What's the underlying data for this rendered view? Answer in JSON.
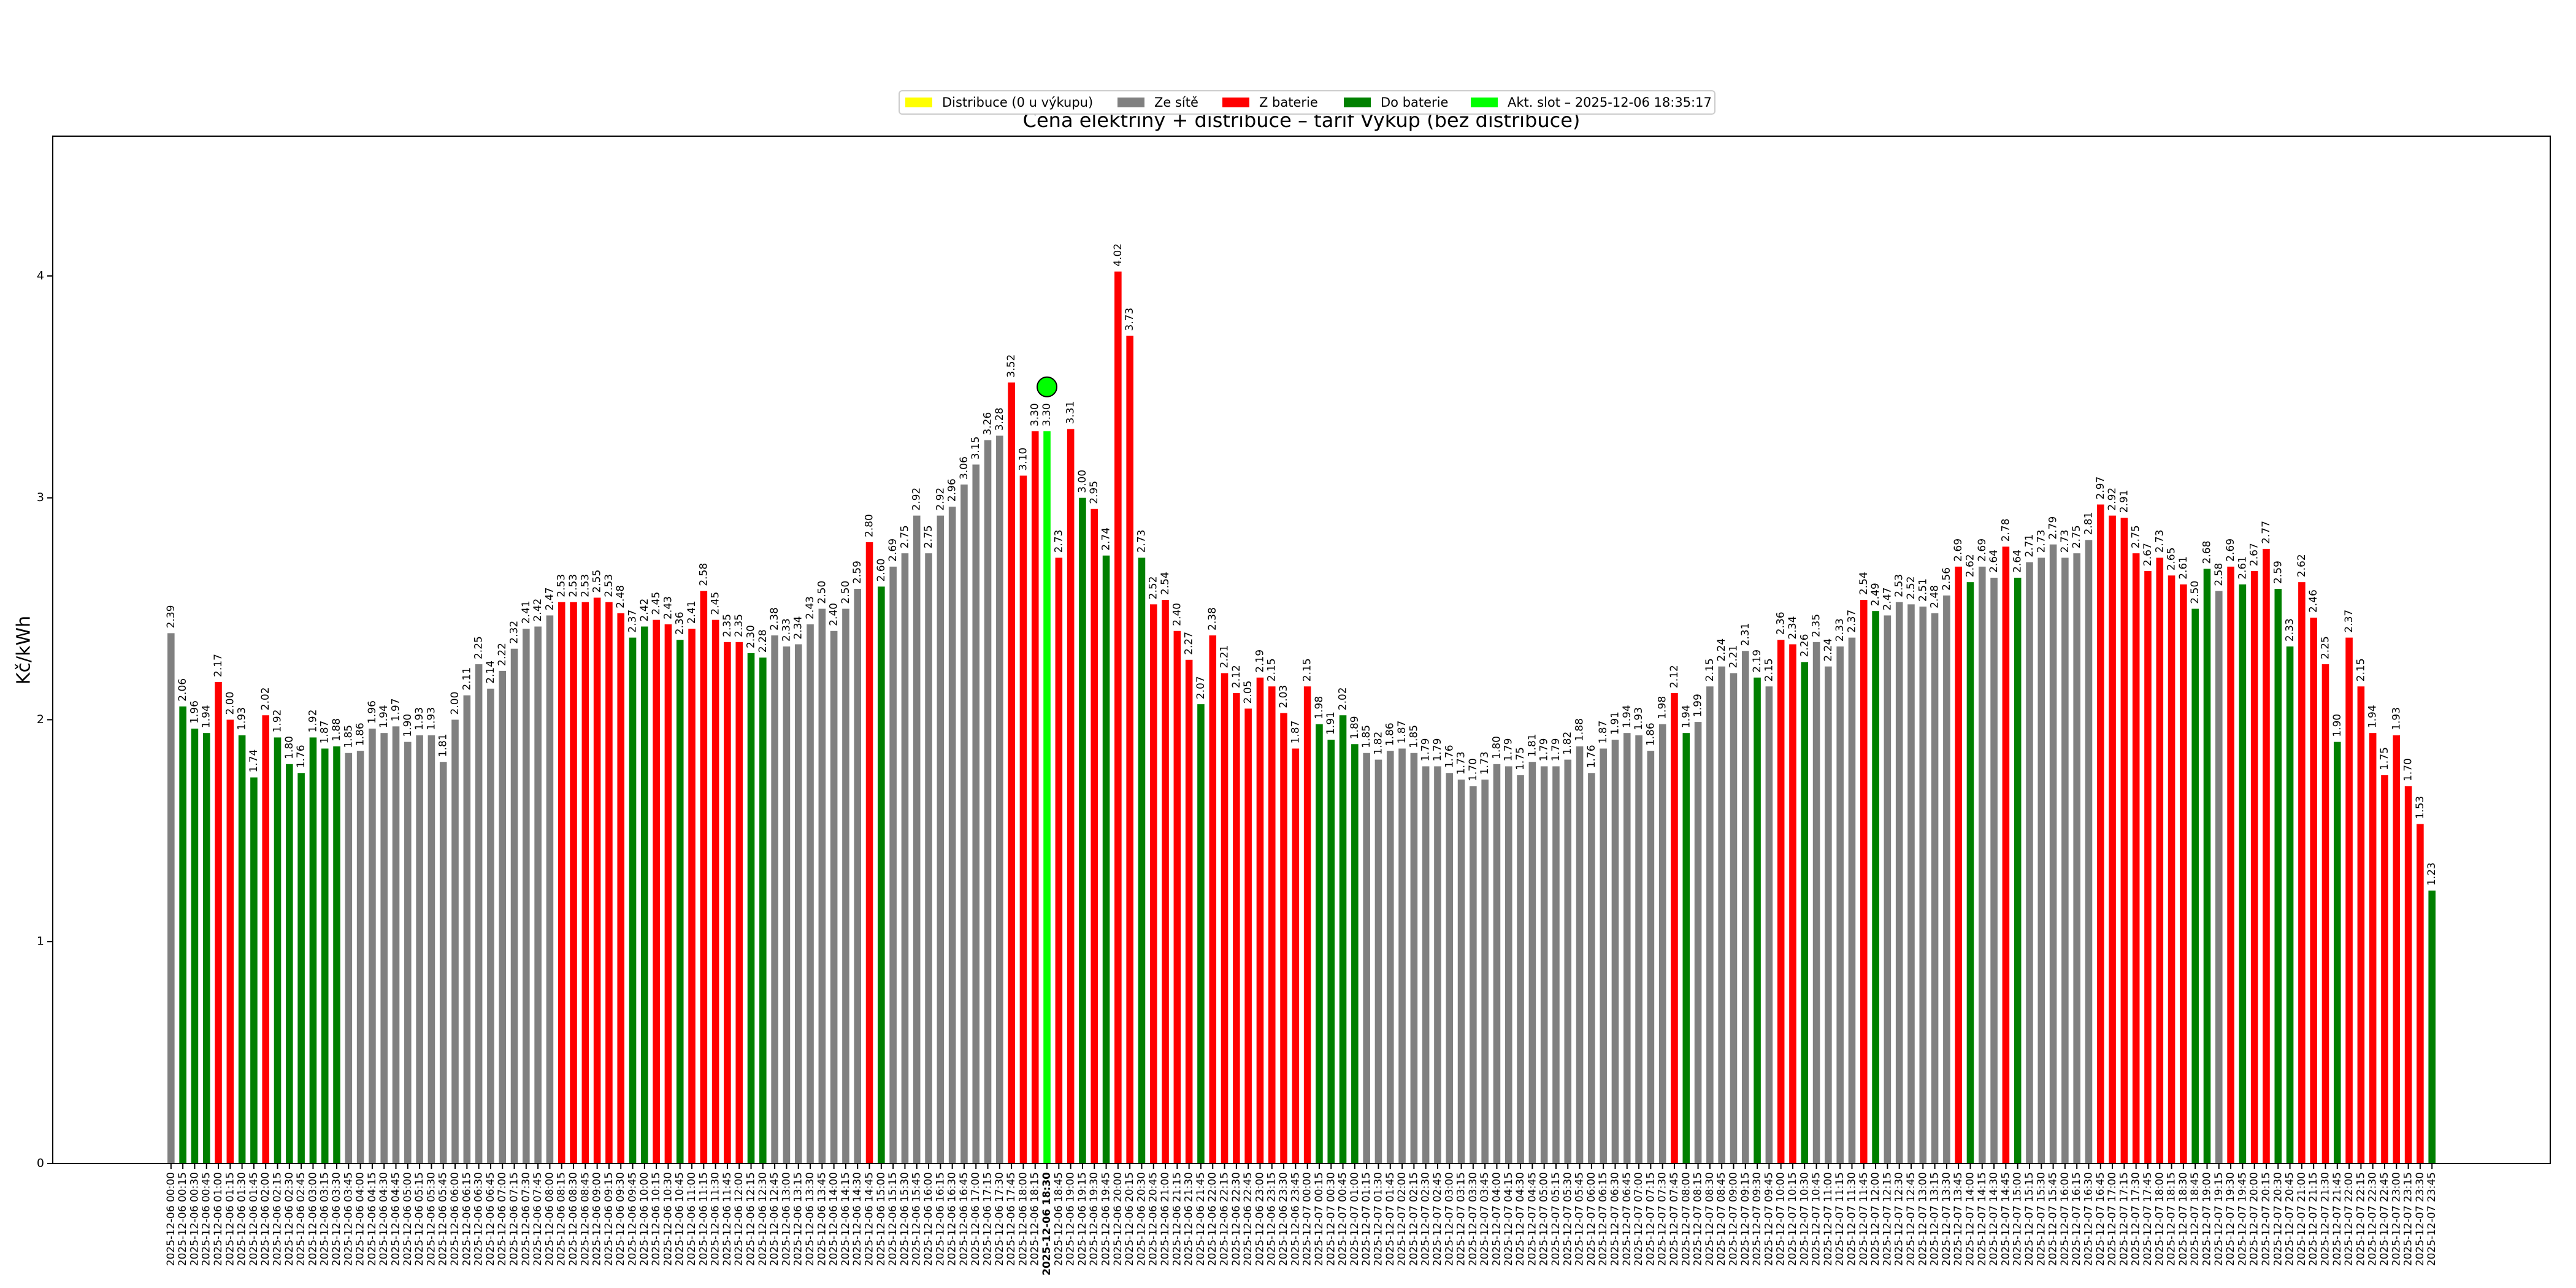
{
  "chart_data": {
    "type": "bar",
    "title": "Cena elektřiny + distribuce – tarif Výkup (bez distribuce)",
    "y_label": "Kč/kWh",
    "ylim": [
      0,
      4.63
    ],
    "yticks": [
      0,
      1,
      2,
      3,
      4
    ],
    "series": [
      {
        "name": "Distribuce (0 u výkupu)",
        "color": "#ffff00"
      },
      {
        "name": "Ze sítě",
        "color": "#808080"
      },
      {
        "name": "Z baterie",
        "color": "#ff0000"
      },
      {
        "name": "Do baterie",
        "color": "#008000"
      },
      {
        "name": "Akt. slot – 2025-12-06 18:35:17",
        "color": "#00ff00"
      }
    ],
    "highlight_index": 74,
    "current_marker": {
      "index": 74,
      "value": 3.5
    },
    "categories": [
      "2025-12-06 00:00",
      "2025-12-06 00:15",
      "2025-12-06 00:30",
      "2025-12-06 00:45",
      "2025-12-06 01:00",
      "2025-12-06 01:15",
      "2025-12-06 01:30",
      "2025-12-06 01:45",
      "2025-12-06 02:00",
      "2025-12-06 02:15",
      "2025-12-06 02:30",
      "2025-12-06 02:45",
      "2025-12-06 03:00",
      "2025-12-06 03:15",
      "2025-12-06 03:30",
      "2025-12-06 03:45",
      "2025-12-06 04:00",
      "2025-12-06 04:15",
      "2025-12-06 04:30",
      "2025-12-06 04:45",
      "2025-12-06 05:00",
      "2025-12-06 05:15",
      "2025-12-06 05:30",
      "2025-12-06 05:45",
      "2025-12-06 06:00",
      "2025-12-06 06:15",
      "2025-12-06 06:30",
      "2025-12-06 06:45",
      "2025-12-06 07:00",
      "2025-12-06 07:15",
      "2025-12-06 07:30",
      "2025-12-06 07:45",
      "2025-12-06 08:00",
      "2025-12-06 08:15",
      "2025-12-06 08:30",
      "2025-12-06 08:45",
      "2025-12-06 09:00",
      "2025-12-06 09:15",
      "2025-12-06 09:30",
      "2025-12-06 09:45",
      "2025-12-06 10:00",
      "2025-12-06 10:15",
      "2025-12-06 10:30",
      "2025-12-06 10:45",
      "2025-12-06 11:00",
      "2025-12-06 11:15",
      "2025-12-06 11:30",
      "2025-12-06 11:45",
      "2025-12-06 12:00",
      "2025-12-06 12:15",
      "2025-12-06 12:30",
      "2025-12-06 12:45",
      "2025-12-06 13:00",
      "2025-12-06 13:15",
      "2025-12-06 13:30",
      "2025-12-06 13:45",
      "2025-12-06 14:00",
      "2025-12-06 14:15",
      "2025-12-06 14:30",
      "2025-12-06 14:45",
      "2025-12-06 15:00",
      "2025-12-06 15:15",
      "2025-12-06 15:30",
      "2025-12-06 15:45",
      "2025-12-06 16:00",
      "2025-12-06 16:15",
      "2025-12-06 16:30",
      "2025-12-06 16:45",
      "2025-12-06 17:00",
      "2025-12-06 17:15",
      "2025-12-06 17:30",
      "2025-12-06 17:45",
      "2025-12-06 18:00",
      "2025-12-06 18:15",
      "2025-12-06 18:30",
      "2025-12-06 18:45",
      "2025-12-06 19:00",
      "2025-12-06 19:15",
      "2025-12-06 19:30",
      "2025-12-06 19:45",
      "2025-12-06 20:00",
      "2025-12-06 20:15",
      "2025-12-06 20:30",
      "2025-12-06 20:45",
      "2025-12-06 21:00",
      "2025-12-06 21:15",
      "2025-12-06 21:30",
      "2025-12-06 21:45",
      "2025-12-06 22:00",
      "2025-12-06 22:15",
      "2025-12-06 22:30",
      "2025-12-06 22:45",
      "2025-12-06 23:00",
      "2025-12-06 23:15",
      "2025-12-06 23:30",
      "2025-12-06 23:45",
      "2025-12-07 00:00",
      "2025-12-07 00:15",
      "2025-12-07 00:30",
      "2025-12-07 00:45",
      "2025-12-07 01:00",
      "2025-12-07 01:15",
      "2025-12-07 01:30",
      "2025-12-07 01:45",
      "2025-12-07 02:00",
      "2025-12-07 02:15",
      "2025-12-07 02:30",
      "2025-12-07 02:45",
      "2025-12-07 03:00",
      "2025-12-07 03:15",
      "2025-12-07 03:30",
      "2025-12-07 03:45",
      "2025-12-07 04:00",
      "2025-12-07 04:15",
      "2025-12-07 04:30",
      "2025-12-07 04:45",
      "2025-12-07 05:00",
      "2025-12-07 05:15",
      "2025-12-07 05:30",
      "2025-12-07 05:45",
      "2025-12-07 06:00",
      "2025-12-07 06:15",
      "2025-12-07 06:30",
      "2025-12-07 06:45",
      "2025-12-07 07:00",
      "2025-12-07 07:15",
      "2025-12-07 07:30",
      "2025-12-07 07:45",
      "2025-12-07 08:00",
      "2025-12-07 08:15",
      "2025-12-07 08:30",
      "2025-12-07 08:45",
      "2025-12-07 09:00",
      "2025-12-07 09:15",
      "2025-12-07 09:30",
      "2025-12-07 09:45",
      "2025-12-07 10:00",
      "2025-12-07 10:15",
      "2025-12-07 10:30",
      "2025-12-07 10:45",
      "2025-12-07 11:00",
      "2025-12-07 11:15",
      "2025-12-07 11:30",
      "2025-12-07 11:45",
      "2025-12-07 12:00",
      "2025-12-07 12:15",
      "2025-12-07 12:30",
      "2025-12-07 12:45",
      "2025-12-07 13:00",
      "2025-12-07 13:15",
      "2025-12-07 13:30",
      "2025-12-07 13:45",
      "2025-12-07 14:00",
      "2025-12-07 14:15",
      "2025-12-07 14:30",
      "2025-12-07 14:45",
      "2025-12-07 15:00",
      "2025-12-07 15:15",
      "2025-12-07 15:30",
      "2025-12-07 15:45",
      "2025-12-07 16:00",
      "2025-12-07 16:15",
      "2025-12-07 16:30",
      "2025-12-07 16:45",
      "2025-12-07 17:00",
      "2025-12-07 17:15",
      "2025-12-07 17:30",
      "2025-12-07 17:45",
      "2025-12-07 18:00",
      "2025-12-07 18:15",
      "2025-12-07 18:30",
      "2025-12-07 18:45",
      "2025-12-07 19:00",
      "2025-12-07 19:15",
      "2025-12-07 19:30",
      "2025-12-07 19:45",
      "2025-12-07 20:00",
      "2025-12-07 20:15",
      "2025-12-07 20:30",
      "2025-12-07 20:45",
      "2025-12-07 21:00",
      "2025-12-07 21:15",
      "2025-12-07 21:30",
      "2025-12-07 21:45",
      "2025-12-07 22:00",
      "2025-12-07 22:15",
      "2025-12-07 22:30",
      "2025-12-07 22:45",
      "2025-12-07 23:00",
      "2025-12-07 23:15",
      "2025-12-07 23:30",
      "2025-12-07 23:45"
    ],
    "values": [
      2.39,
      2.06,
      1.96,
      1.94,
      2.17,
      2.0,
      1.93,
      1.74,
      2.02,
      1.92,
      1.8,
      1.76,
      1.92,
      1.87,
      1.88,
      1.85,
      1.86,
      1.96,
      1.94,
      1.97,
      1.9,
      1.93,
      1.93,
      1.81,
      2.0,
      2.11,
      2.25,
      2.14,
      2.22,
      2.32,
      2.41,
      2.42,
      2.47,
      2.53,
      2.53,
      2.53,
      2.55,
      2.53,
      2.48,
      2.37,
      2.42,
      2.45,
      2.43,
      2.36,
      2.41,
      2.58,
      2.45,
      2.35,
      2.35,
      2.3,
      2.28,
      2.38,
      2.33,
      2.34,
      2.43,
      2.5,
      2.4,
      2.5,
      2.59,
      2.8,
      2.6,
      2.69,
      2.75,
      2.92,
      2.75,
      2.92,
      2.96,
      3.06,
      3.15,
      3.26,
      3.28,
      3.52,
      3.1,
      3.3,
      3.3,
      2.73,
      3.31,
      3.0,
      2.95,
      2.74,
      4.02,
      3.73,
      2.73,
      2.52,
      2.54,
      2.4,
      2.27,
      2.07,
      2.38,
      2.21,
      2.12,
      2.05,
      2.19,
      2.15,
      2.03,
      1.87,
      2.15,
      1.98,
      1.91,
      2.02,
      1.89,
      1.85,
      1.82,
      1.86,
      1.87,
      1.85,
      1.79,
      1.79,
      1.76,
      1.73,
      1.7,
      1.73,
      1.8,
      1.79,
      1.75,
      1.81,
      1.79,
      1.79,
      1.82,
      1.88,
      1.76,
      1.87,
      1.91,
      1.94,
      1.93,
      1.86,
      1.98,
      2.12,
      1.94,
      1.99,
      2.15,
      2.24,
      2.21,
      2.31,
      2.19,
      2.15,
      2.36,
      2.34,
      2.26,
      2.35,
      2.24,
      2.33,
      2.37,
      2.54,
      2.49,
      2.47,
      2.53,
      2.52,
      2.51,
      2.48,
      2.56,
      2.69,
      2.62,
      2.69,
      2.64,
      2.78,
      2.64,
      2.71,
      2.73,
      2.79,
      2.73,
      2.75,
      2.81,
      2.97,
      2.92,
      2.91,
      2.75,
      2.67,
      2.73,
      2.65,
      2.61,
      2.5,
      2.68,
      2.58,
      2.69,
      2.61,
      2.67,
      2.77,
      2.59,
      2.33,
      2.62,
      2.46,
      2.25,
      1.9,
      2.37,
      2.15,
      1.94,
      1.75,
      1.93,
      1.7,
      1.53,
      1.23
    ],
    "value_labels": [
      "2.39",
      "2.06",
      "1.96",
      "1.94",
      "2.17",
      "2.00",
      "1.93",
      "1.74",
      "2.02",
      "1.92",
      "1.80",
      "1.76",
      "1.92",
      "1.87",
      "1.88",
      "1.85",
      "1.86",
      "1.96",
      "1.94",
      "1.97",
      "1.90",
      "1.93",
      "1.93",
      "1.81",
      "2.00",
      "2.11",
      "2.25",
      "2.14",
      "2.22",
      "2.32",
      "2.41",
      "2.42",
      "2.47",
      "2.53",
      "2.53",
      "2.53",
      "2.55",
      "2.53",
      "2.48",
      "2.37",
      "2.42",
      "2.45",
      "2.43",
      "2.36",
      "2.41",
      "2.58",
      "2.45",
      "2.35",
      "2.35",
      "2.30",
      "2.28",
      "2.38",
      "2.33",
      "2.34",
      "2.43",
      "2.50",
      "2.40",
      "2.50",
      "2.59",
      "2.80",
      "2.60",
      "2.69",
      "2.75",
      "2.92",
      "2.75",
      "2.92",
      "2.96",
      "3.06",
      "3.15",
      "3.26",
      "3.28",
      "3.52",
      "3.10",
      "3.30",
      "3.30",
      "2.73",
      "3.31",
      "3.00",
      "2.95",
      "2.74",
      "4.02",
      "3.73",
      "2.73",
      "2.52",
      "2.54",
      "2.40",
      "2.27",
      "2.07",
      "2.38",
      "2.21",
      "2.12",
      "2.05",
      "2.19",
      "2.15",
      "2.03",
      "1.87",
      "2.15",
      "1.98",
      "1.91",
      "2.02",
      "1.89",
      "1.85",
      "1.82",
      "1.86",
      "1.87",
      "1.85",
      "1.79",
      "1.79",
      "1.76",
      "1.73",
      "1.70",
      "1.73",
      "1.80",
      "1.79",
      "1.75",
      "1.81",
      "1.79",
      "1.79",
      "1.82",
      "1.88",
      "1.76",
      "1.87",
      "1.91",
      "1.94",
      "1.93",
      "1.86",
      "1.98",
      "2.12",
      "1.94",
      "1.99",
      "2.15",
      "2.24",
      "2.21",
      "2.31",
      "2.19",
      "2.15",
      "2.36",
      "2.34",
      "2.26",
      "2.35",
      "2.24",
      "2.33",
      "2.37",
      "2.54",
      "2.49",
      "2.47",
      "2.53",
      "2.52",
      "2.51",
      "2.48",
      "2.56",
      "2.69",
      "2.62",
      "2.69",
      "2.64",
      "2.78",
      "2.64",
      "2.71",
      "2.73",
      "2.79",
      "2.73",
      "2.75",
      "2.81",
      "2.97",
      "2.92",
      "2.91",
      "2.75",
      "2.67",
      "2.73",
      "2.65",
      "2.61",
      "2.50",
      "2.68",
      "2.58",
      "2.69",
      "2.61",
      "2.67",
      "2.77",
      "2.59",
      "2.33",
      "2.62",
      "2.46",
      "2.25",
      "1.90",
      "2.37",
      "2.15",
      "1.94",
      "1.75",
      "1.93",
      "1.70",
      "1.53",
      "1.23"
    ],
    "bar_series": [
      1,
      3,
      3,
      3,
      2,
      2,
      3,
      3,
      2,
      3,
      3,
      3,
      3,
      3,
      3,
      1,
      1,
      1,
      1,
      1,
      1,
      1,
      1,
      1,
      1,
      1,
      1,
      1,
      1,
      1,
      1,
      1,
      1,
      2,
      2,
      2,
      2,
      2,
      2,
      3,
      3,
      2,
      2,
      3,
      2,
      2,
      2,
      2,
      2,
      3,
      3,
      1,
      1,
      1,
      1,
      1,
      1,
      1,
      1,
      2,
      3,
      1,
      1,
      1,
      1,
      1,
      1,
      1,
      1,
      1,
      1,
      2,
      2,
      2,
      4,
      2,
      2,
      3,
      2,
      3,
      2,
      2,
      3,
      2,
      2,
      2,
      2,
      3,
      2,
      2,
      2,
      2,
      2,
      2,
      2,
      2,
      2,
      3,
      3,
      3,
      3,
      1,
      1,
      1,
      1,
      1,
      1,
      1,
      1,
      1,
      1,
      1,
      1,
      1,
      1,
      1,
      1,
      1,
      1,
      1,
      1,
      1,
      1,
      1,
      1,
      1,
      1,
      2,
      3,
      1,
      1,
      1,
      1,
      1,
      3,
      1,
      2,
      2,
      3,
      1,
      1,
      1,
      1,
      2,
      3,
      1,
      1,
      1,
      1,
      1,
      1,
      2,
      3,
      1,
      1,
      2,
      3,
      1,
      1,
      1,
      1,
      1,
      1,
      2,
      2,
      2,
      2,
      2,
      2,
      2,
      2,
      3,
      3,
      1,
      2,
      3,
      2,
      2,
      3,
      3,
      2,
      2,
      2,
      3,
      2,
      2,
      2,
      2,
      2,
      2,
      2,
      3
    ]
  }
}
